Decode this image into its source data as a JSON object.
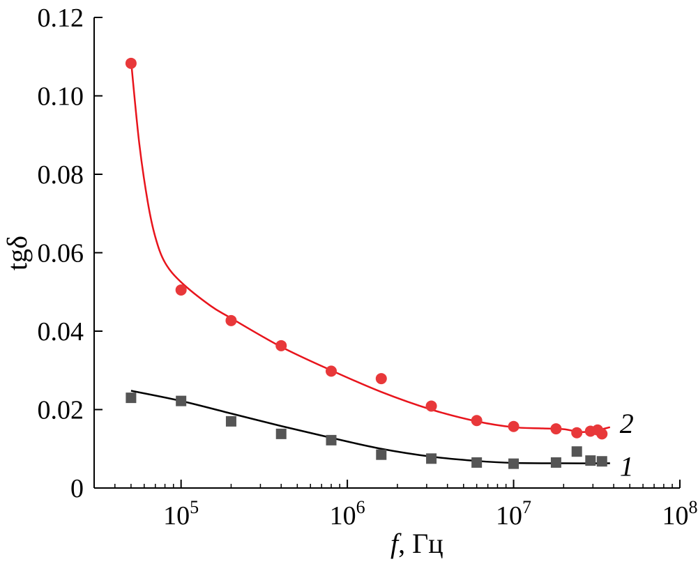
{
  "chart_data": {
    "type": "scatter",
    "title": "",
    "xlabel_italic": "f",
    "xlabel_rest": ", Гц",
    "ylabel": "tgδ",
    "x_scale": "log",
    "xlim": [
      30000,
      100000000
    ],
    "ylim": [
      0,
      0.12
    ],
    "x_ticks": [
      {
        "value": 100000,
        "base": "10",
        "exp": "5"
      },
      {
        "value": 1000000,
        "base": "10",
        "exp": "6"
      },
      {
        "value": 10000000,
        "base": "10",
        "exp": "7"
      },
      {
        "value": 100000000,
        "base": "10",
        "exp": "8"
      }
    ],
    "y_ticks": [
      {
        "value": 0,
        "label": "0"
      },
      {
        "value": 0.02,
        "label": "0.02"
      },
      {
        "value": 0.04,
        "label": "0.04"
      },
      {
        "value": 0.06,
        "label": "0.06"
      },
      {
        "value": 0.08,
        "label": "0.08"
      },
      {
        "value": 0.1,
        "label": "0.10"
      },
      {
        "value": 0.12,
        "label": "0.12"
      }
    ],
    "grid": false,
    "series": [
      {
        "name": "1",
        "marker": "square",
        "color": "#555555",
        "line_color": "#000000",
        "points": [
          [
            50000,
            0.023
          ],
          [
            100000,
            0.0222
          ],
          [
            200000,
            0.017
          ],
          [
            400000,
            0.0138
          ],
          [
            800000,
            0.0122
          ],
          [
            1600000,
            0.0085
          ],
          [
            3200000,
            0.0075
          ],
          [
            6000000,
            0.0065
          ],
          [
            10000000,
            0.0062
          ],
          [
            18000000,
            0.0065
          ],
          [
            24000000,
            0.0093
          ],
          [
            29000000,
            0.007
          ],
          [
            34000000,
            0.0068
          ]
        ],
        "fit": [
          [
            50000,
            0.0248
          ],
          [
            100000,
            0.0222
          ],
          [
            200000,
            0.019
          ],
          [
            400000,
            0.0158
          ],
          [
            800000,
            0.0128
          ],
          [
            1600000,
            0.01
          ],
          [
            3200000,
            0.008
          ],
          [
            6000000,
            0.0069
          ],
          [
            10000000,
            0.0064
          ],
          [
            20000000,
            0.0063
          ],
          [
            38000000,
            0.0063
          ]
        ]
      },
      {
        "name": "2",
        "marker": "circle",
        "color": "#e8383a",
        "line_color": "#e8141c",
        "points": [
          [
            50000,
            0.1083
          ],
          [
            100000,
            0.0505
          ],
          [
            200000,
            0.0427
          ],
          [
            400000,
            0.0363
          ],
          [
            800000,
            0.0298
          ],
          [
            1600000,
            0.0279
          ],
          [
            3200000,
            0.0209
          ],
          [
            6000000,
            0.0172
          ],
          [
            10000000,
            0.0157
          ],
          [
            18000000,
            0.0151
          ],
          [
            24000000,
            0.0141
          ],
          [
            29000000,
            0.0145
          ],
          [
            32000000,
            0.0148
          ],
          [
            34000000,
            0.0138
          ]
        ],
        "fit": [
          [
            50000,
            0.109
          ],
          [
            56000,
            0.088
          ],
          [
            63000,
            0.073
          ],
          [
            70000,
            0.064
          ],
          [
            80000,
            0.0575
          ],
          [
            100000,
            0.0525
          ],
          [
            150000,
            0.0465
          ],
          [
            200000,
            0.0433
          ],
          [
            400000,
            0.036
          ],
          [
            800000,
            0.03
          ],
          [
            1600000,
            0.0245
          ],
          [
            3200000,
            0.02
          ],
          [
            6000000,
            0.017
          ],
          [
            10000000,
            0.0155
          ],
          [
            15000000,
            0.0152
          ],
          [
            20000000,
            0.015
          ],
          [
            25000000,
            0.0143
          ],
          [
            30000000,
            0.0145
          ],
          [
            38000000,
            0.0155
          ]
        ]
      }
    ]
  }
}
